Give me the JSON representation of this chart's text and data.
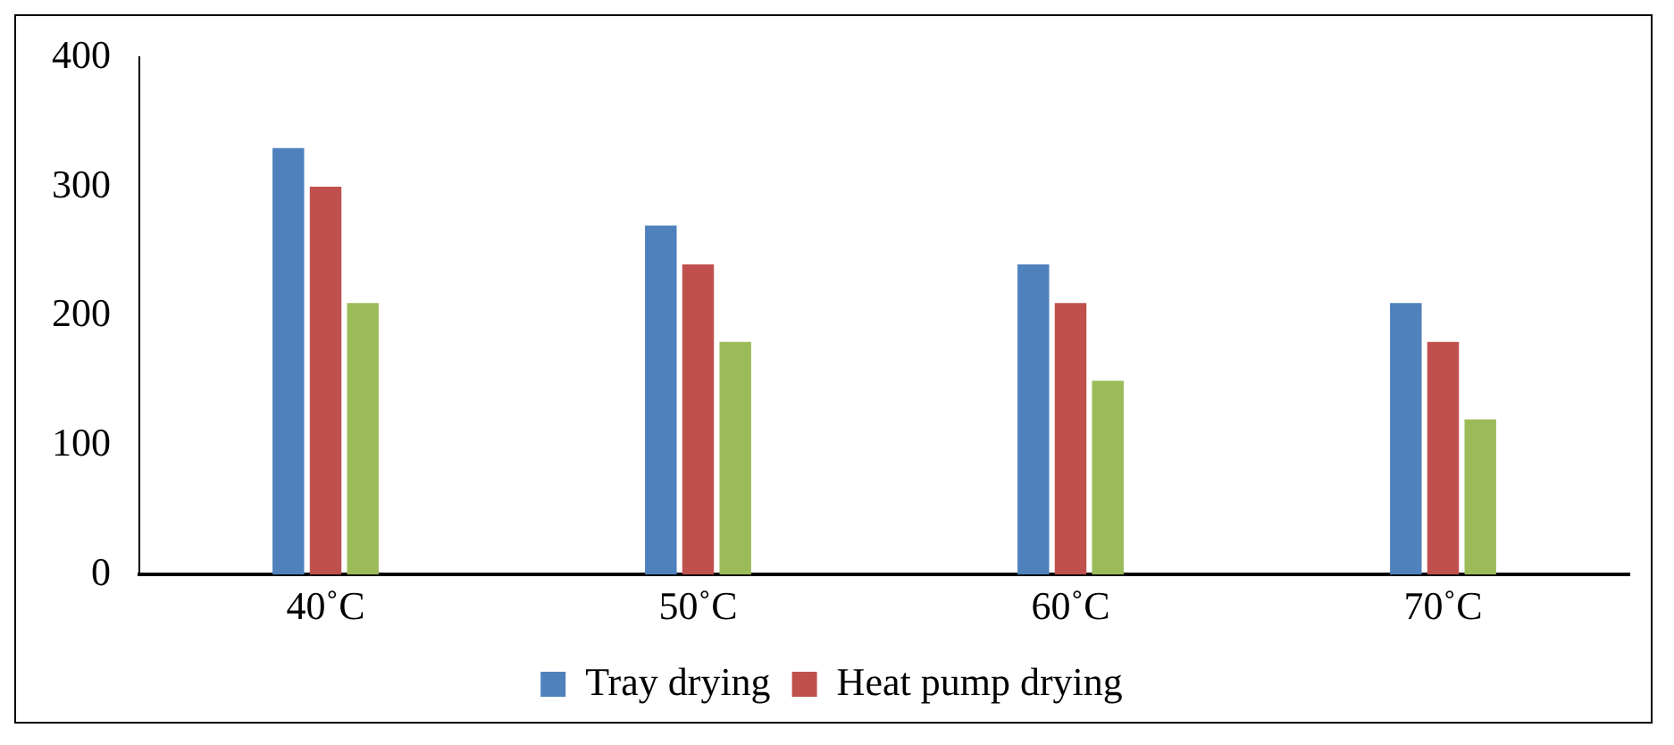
{
  "chart_data": {
    "type": "bar",
    "categories": [
      "40˚C",
      "50˚C",
      "60˚C",
      "70˚C"
    ],
    "series": [
      {
        "name": "Tray drying",
        "color": "#4f81bd",
        "values": [
          330,
          270,
          240,
          210
        ]
      },
      {
        "name": "Heat pump drying",
        "color": "#c0504d",
        "values": [
          300,
          240,
          210,
          180
        ]
      },
      {
        "color": "#9bbb59",
        "values": [
          210,
          180,
          150,
          120
        ]
      }
    ],
    "ylim": [
      0,
      400
    ],
    "yticks": [
      0,
      100,
      200,
      300,
      400
    ],
    "grid": false,
    "legend": "bottom"
  }
}
